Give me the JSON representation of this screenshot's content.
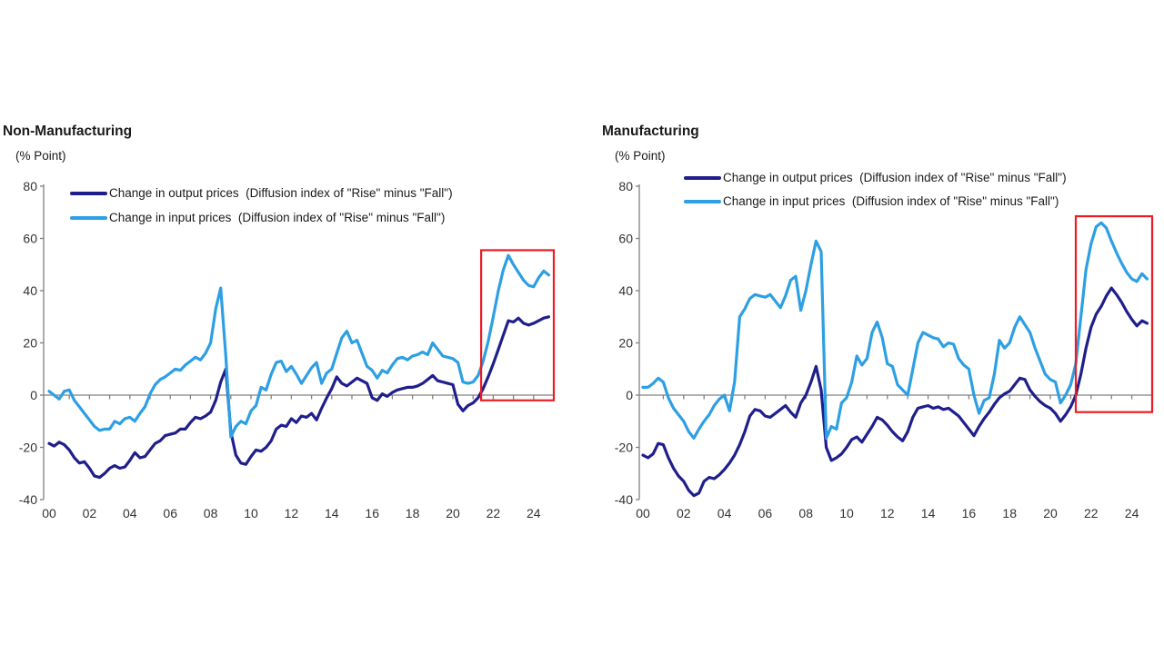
{
  "colors": {
    "output": "#1f1f8c",
    "input": "#2d9fe3",
    "highlight_box": "#ed1c24",
    "axis": "#808080",
    "tick_text": "#333333",
    "text": "#1a1a1a"
  },
  "chart_data": [
    {
      "type": "line",
      "title": "Non-Manufacturing",
      "ylabel": "(% Point)",
      "ylim": [
        -40,
        80
      ],
      "yticks": [
        80,
        60,
        40,
        20,
        0,
        -20,
        -40
      ],
      "xtick_labels": [
        "00",
        "02",
        "04",
        "06",
        "08",
        "10",
        "12",
        "14",
        "16",
        "18",
        "20",
        "22",
        "24"
      ],
      "x_start": 2000,
      "x_step": 0.25,
      "x_axis_end": 2025,
      "grid": false,
      "legend_position": "top-left-inside",
      "highlight_box": {
        "x_from": 2021.4,
        "x_to": 2025.0,
        "y_from": -2,
        "y_to": 55.5
      },
      "series": [
        {
          "name": "Change in output prices  (Diffusion index of \"Rise\" minus \"Fall\")",
          "color_key": "output",
          "values": [
            -18.5,
            -19.5,
            -18,
            -19,
            -21,
            -24,
            -26,
            -25.5,
            -28,
            -31,
            -31.5,
            -30,
            -28,
            -27,
            -28,
            -27.5,
            -25,
            -22,
            -24,
            -23.5,
            -21,
            -18.5,
            -17.5,
            -15.5,
            -15,
            -14.5,
            -13,
            -13,
            -10.5,
            -8.5,
            -9,
            -8,
            -6.5,
            -2,
            5,
            10,
            -14,
            -23,
            -26,
            -26.5,
            -23.5,
            -21,
            -21.5,
            -20,
            -17.5,
            -13,
            -11.5,
            -12,
            -9,
            -10.5,
            -8,
            -8.5,
            -7,
            -9.5,
            -5,
            -1,
            2.5,
            7,
            4.5,
            3.5,
            5,
            6.5,
            5.5,
            4.5,
            -1,
            -2,
            0.5,
            -0.5,
            1,
            2,
            2.5,
            3,
            3,
            3.5,
            4.5,
            6,
            7.5,
            5.5,
            5,
            4.5,
            4,
            -3.5,
            -6,
            -4,
            -3,
            -1,
            2.5,
            7,
            12,
            17.5,
            23,
            28.5,
            28,
            29.5,
            27.5,
            26.8,
            27.5,
            28.5,
            29.5,
            30
          ]
        },
        {
          "name": "Change in input prices  (Diffusion index of \"Rise\" minus \"Fall\")",
          "color_key": "input",
          "values": [
            1.5,
            0,
            -1.5,
            1.5,
            2,
            -2,
            -4.5,
            -7,
            -9.5,
            -12,
            -13.5,
            -13,
            -13,
            -10,
            -11,
            -9,
            -8.5,
            -10,
            -7,
            -4.5,
            0.5,
            4,
            6,
            7,
            8.5,
            10,
            9.5,
            11.5,
            13,
            14.5,
            13.5,
            16,
            20,
            33,
            41,
            15,
            -16,
            -12,
            -10,
            -11,
            -6,
            -4,
            3,
            2,
            8,
            12.5,
            13,
            9,
            11,
            8,
            4.5,
            7.5,
            10.5,
            12.5,
            4.5,
            8.5,
            10,
            16,
            22,
            24.5,
            20,
            21,
            16,
            11,
            9.5,
            6.5,
            9.5,
            8.5,
            11.5,
            14,
            14.5,
            13.5,
            15,
            15.5,
            16.5,
            15.5,
            20,
            17.5,
            15,
            14.5,
            14,
            12.5,
            5,
            4.5,
            5,
            7.5,
            13,
            20.5,
            30,
            40,
            48,
            53.5,
            50,
            47,
            44,
            42,
            41.5,
            45,
            47.5,
            46
          ]
        }
      ]
    },
    {
      "type": "line",
      "title": "Manufacturing",
      "ylabel": "(% Point)",
      "ylim": [
        -40,
        80
      ],
      "yticks": [
        80,
        60,
        40,
        20,
        0,
        -20,
        -40
      ],
      "xtick_labels": [
        "00",
        "02",
        "04",
        "06",
        "08",
        "10",
        "12",
        "14",
        "16",
        "18",
        "20",
        "22",
        "24"
      ],
      "x_start": 2000,
      "x_step": 0.25,
      "x_axis_end": 2025,
      "grid": false,
      "legend_position": "top-right-inside",
      "highlight_box": {
        "x_from": 2021.25,
        "x_to": 2025.0,
        "y_from": -6.5,
        "y_to": 68.5
      },
      "series": [
        {
          "name": "Change in output prices  (Diffusion index of \"Rise\" minus \"Fall\")",
          "color_key": "output",
          "values": [
            -23,
            -24,
            -22.5,
            -18.5,
            -19,
            -24,
            -28,
            -31,
            -33,
            -36.5,
            -38.5,
            -37.5,
            -33,
            -31.5,
            -32,
            -30.5,
            -28.5,
            -26,
            -23,
            -19,
            -14,
            -8,
            -5.5,
            -6,
            -8,
            -8.5,
            -7,
            -5.5,
            -4,
            -6.5,
            -8.5,
            -3,
            0,
            5,
            11,
            2,
            -20,
            -25,
            -24,
            -22.5,
            -20,
            -17,
            -16,
            -18,
            -15,
            -12,
            -8.5,
            -9.5,
            -11.5,
            -14,
            -16,
            -17.5,
            -14,
            -8.5,
            -5,
            -4.5,
            -4,
            -5,
            -4.5,
            -5.5,
            -5,
            -6.5,
            -8,
            -10.5,
            -13,
            -15.5,
            -12,
            -9,
            -6.5,
            -3.5,
            -1,
            0.5,
            1.5,
            4,
            6.5,
            6,
            2,
            -0.5,
            -2.5,
            -4,
            -5,
            -7,
            -10,
            -7.5,
            -4.5,
            0,
            8,
            18,
            26,
            31,
            34,
            38,
            41,
            38.5,
            35.5,
            32,
            29,
            26.5,
            28.5,
            27.5
          ]
        },
        {
          "name": "Change in input prices  (Diffusion index of \"Rise\" minus \"Fall\")",
          "color_key": "input",
          "values": [
            3,
            3,
            4.5,
            6.5,
            5,
            -1,
            -5,
            -7.5,
            -10,
            -14,
            -16.5,
            -13,
            -10,
            -7.5,
            -4,
            -1.5,
            0,
            -6,
            5,
            30,
            33,
            37,
            38.5,
            38,
            37.5,
            38.5,
            36,
            33.5,
            38,
            44,
            45.5,
            32.5,
            40,
            50,
            59,
            55,
            -16.5,
            -12,
            -13,
            -3,
            -1,
            5,
            15,
            11.5,
            14,
            24,
            28,
            22,
            12,
            11,
            4,
            2,
            0,
            10,
            20,
            24,
            23,
            22,
            21.5,
            18.5,
            20,
            19.5,
            14,
            11.5,
            10,
            0,
            -7,
            -2,
            -1,
            8,
            21,
            18,
            20,
            26,
            30,
            27,
            24,
            18,
            13,
            8,
            6,
            5,
            -3,
            0,
            4,
            12,
            30,
            48,
            58,
            64.5,
            66,
            64,
            59,
            54.5,
            50.5,
            47,
            44.5,
            43.5,
            46.5,
            44.5
          ]
        }
      ]
    }
  ]
}
